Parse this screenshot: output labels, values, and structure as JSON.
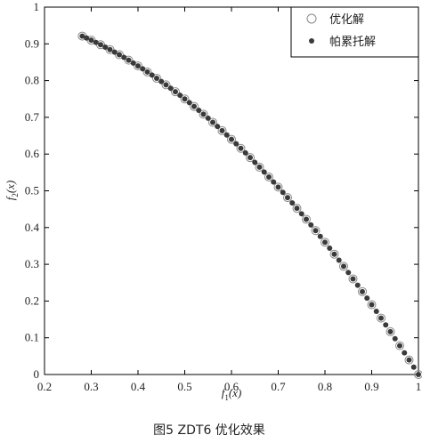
{
  "chart_data": {
    "type": "scatter",
    "xlim": [
      0.2,
      1.0
    ],
    "ylim": [
      0,
      1.0
    ],
    "x_ticks": [
      0.2,
      0.3,
      0.4,
      0.5,
      0.6,
      0.7,
      0.8,
      0.9,
      1
    ],
    "y_ticks": [
      0,
      0.1,
      0.2,
      0.3,
      0.4,
      0.5,
      0.6,
      0.7,
      0.8,
      0.9,
      1
    ],
    "x_tick_labels": [
      "0.2",
      "0.3",
      "0.4",
      "0.5",
      "0.6",
      "0.7",
      "0.8",
      "0.9",
      "1"
    ],
    "y_tick_labels": [
      "0",
      "0.1",
      "0.2",
      "0.3",
      "0.4",
      "0.5",
      "0.6",
      "0.7",
      "0.8",
      "0.9",
      "1"
    ],
    "xlabel": "f1(x)",
    "xlabel_main": "f",
    "xlabel_sub": "1",
    "xlabel_arg": "(x)",
    "ylabel": "f2(x)",
    "ylabel_main": "f",
    "ylabel_sub": "2",
    "ylabel_arg": "(x)",
    "grid": false,
    "legend_position": "top-right",
    "caption": "图5   ZDT6 优化效果",
    "series": [
      {
        "name": "优化解",
        "marker": "open-circle",
        "color": "#888888",
        "x": [
          0.2808,
          0.3,
          0.32,
          0.34,
          0.36,
          0.38,
          0.4,
          0.42,
          0.44,
          0.46,
          0.48,
          0.5,
          0.52,
          0.54,
          0.56,
          0.58,
          0.6,
          0.62,
          0.64,
          0.66,
          0.68,
          0.7,
          0.72,
          0.74,
          0.76,
          0.78,
          0.8,
          0.82,
          0.84,
          0.86,
          0.88,
          0.9,
          0.92,
          0.94,
          0.96,
          0.98,
          1.0
        ],
        "y": [
          0.9211,
          0.91,
          0.8976,
          0.8844,
          0.8704,
          0.8556,
          0.84,
          0.8236,
          0.8064,
          0.7884,
          0.7696,
          0.75,
          0.7296,
          0.7084,
          0.6864,
          0.6636,
          0.64,
          0.6156,
          0.5904,
          0.5644,
          0.5376,
          0.51,
          0.4816,
          0.4524,
          0.4224,
          0.3916,
          0.36,
          0.3276,
          0.2944,
          0.2604,
          0.2256,
          0.19,
          0.1536,
          0.1164,
          0.0784,
          0.0396,
          0.0
        ]
      },
      {
        "name": "帕累托解",
        "marker": "filled-dot",
        "color": "#3a3a3a",
        "x": [
          0.2808,
          0.29,
          0.3,
          0.31,
          0.32,
          0.33,
          0.34,
          0.35,
          0.36,
          0.37,
          0.38,
          0.39,
          0.4,
          0.41,
          0.42,
          0.43,
          0.44,
          0.45,
          0.46,
          0.47,
          0.48,
          0.49,
          0.5,
          0.51,
          0.52,
          0.53,
          0.54,
          0.55,
          0.56,
          0.57,
          0.58,
          0.59,
          0.6,
          0.61,
          0.62,
          0.63,
          0.64,
          0.65,
          0.66,
          0.67,
          0.68,
          0.69,
          0.7,
          0.71,
          0.72,
          0.73,
          0.74,
          0.75,
          0.76,
          0.77,
          0.78,
          0.79,
          0.8,
          0.81,
          0.82,
          0.83,
          0.84,
          0.85,
          0.86,
          0.87,
          0.88,
          0.89,
          0.9,
          0.91,
          0.92,
          0.93,
          0.94,
          0.95,
          0.96,
          0.97,
          0.98,
          0.99,
          1.0
        ],
        "y": [
          0.9211,
          0.9159,
          0.91,
          0.9039,
          0.8976,
          0.8911,
          0.8844,
          0.8775,
          0.8704,
          0.8631,
          0.8556,
          0.8479,
          0.84,
          0.8319,
          0.8236,
          0.8151,
          0.8064,
          0.7975,
          0.7884,
          0.7791,
          0.7696,
          0.7599,
          0.75,
          0.7399,
          0.7296,
          0.7191,
          0.7084,
          0.6975,
          0.6864,
          0.6751,
          0.6636,
          0.6519,
          0.64,
          0.6279,
          0.6156,
          0.6031,
          0.5904,
          0.5775,
          0.5644,
          0.5511,
          0.5376,
          0.5239,
          0.51,
          0.4959,
          0.4816,
          0.4671,
          0.4524,
          0.4375,
          0.4224,
          0.4071,
          0.3916,
          0.3759,
          0.36,
          0.3439,
          0.3276,
          0.3111,
          0.2944,
          0.2775,
          0.2604,
          0.2431,
          0.2256,
          0.2079,
          0.19,
          0.1719,
          0.1536,
          0.1351,
          0.1164,
          0.0975,
          0.0784,
          0.0591,
          0.0396,
          0.0199,
          0.0
        ]
      }
    ]
  }
}
